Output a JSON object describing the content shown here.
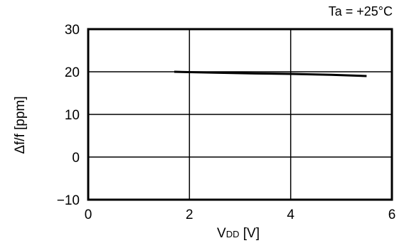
{
  "chart_data": {
    "type": "line",
    "annotation": "Ta = +25°C",
    "xlabel_main": "V",
    "xlabel_sub": "DD",
    "xlabel_unit": " [V]",
    "ylabel": "Δf/f [ppm]",
    "xlim": [
      0,
      6
    ],
    "ylim": [
      -10,
      30
    ],
    "xticks": [
      0,
      2,
      4,
      6
    ],
    "xtick_labels": [
      "0",
      "2",
      "4",
      "6"
    ],
    "yticks": [
      -10,
      0,
      10,
      20,
      30
    ],
    "ytick_labels": [
      "−10",
      "0",
      "10",
      "20",
      "30"
    ],
    "grid": true,
    "series": [
      {
        "x": [
          1.7,
          2.5,
          3.3,
          4.0,
          4.8,
          5.5
        ],
        "y": [
          20.0,
          19.8,
          19.6,
          19.5,
          19.3,
          19.0
        ]
      }
    ]
  }
}
